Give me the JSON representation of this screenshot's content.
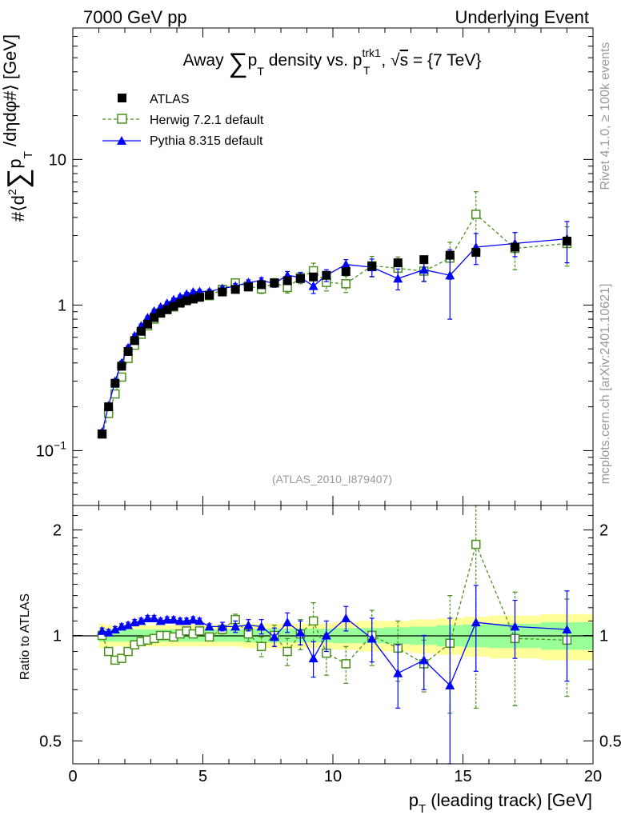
{
  "header": {
    "left": "7000 GeV pp",
    "right": "Underlying Event"
  },
  "side_labels": {
    "rivet": "Rivet 4.1.0, ≥ 100k events",
    "mcplots": "mcplots.cern.ch [arXiv:2401.10621]"
  },
  "chart_data": [
    {
      "type": "scatter",
      "panel": "main",
      "title_parts": {
        "pre": "Away ",
        "sum": "∑",
        "p": "p",
        "T": "T",
        "mid": " density vs. p",
        "sup": "trk1",
        "T2": "T",
        "post1": ", √",
        "s": "s",
        "post2": " = {7 TeV}"
      },
      "ylabel": "#⟨d² ∑ p_T /dηdφ#⟩ [GeV]",
      "ylabel_parts": {
        "a": "#⟨d",
        "two": "2",
        "sum": "∑",
        "p": "p",
        "T": "T",
        "b": " /dηdφ#⟩ [GeV]"
      },
      "yscale": "log",
      "ylim": [
        0.042,
        80
      ],
      "xlim": [
        0,
        20
      ],
      "yticks": [
        {
          "value": 0.1,
          "base": "10",
          "exp": "−1"
        },
        {
          "value": 1,
          "label": "1"
        },
        {
          "value": 10,
          "label": "10"
        }
      ],
      "watermark": "(ATLAS_2010_I879407)",
      "legend": [
        "ATLAS",
        "Herwig 7.2.1 default",
        "Pythia 8.315 default"
      ],
      "x": [
        1.125,
        1.375,
        1.625,
        1.875,
        2.125,
        2.375,
        2.625,
        2.875,
        3.125,
        3.375,
        3.625,
        3.875,
        4.125,
        4.375,
        4.625,
        4.875,
        5.25,
        5.75,
        6.25,
        6.75,
        7.25,
        7.75,
        8.25,
        8.75,
        9.25,
        9.75,
        10.5,
        11.5,
        12.5,
        13.5,
        14.5,
        15.5,
        17.0,
        19.0
      ],
      "series": [
        {
          "name": "ATLAS",
          "color": "#000000",
          "marker": "square",
          "values": [
            0.13,
            0.2,
            0.29,
            0.38,
            0.48,
            0.57,
            0.66,
            0.74,
            0.82,
            0.88,
            0.93,
            0.98,
            1.03,
            1.07,
            1.1,
            1.13,
            1.17,
            1.23,
            1.28,
            1.33,
            1.38,
            1.42,
            1.47,
            1.52,
            1.56,
            1.6,
            1.7,
            1.85,
            1.95,
            2.05,
            2.2,
            2.3,
            2.5,
            2.75
          ],
          "errors": [
            0.005,
            0.008,
            0.01,
            0.012,
            0.015,
            0.017,
            0.02,
            0.02,
            0.022,
            0.024,
            0.025,
            0.027,
            0.03,
            0.03,
            0.032,
            0.033,
            0.035,
            0.04,
            0.04,
            0.045,
            0.05,
            0.05,
            0.055,
            0.06,
            0.065,
            0.07,
            0.08,
            0.1,
            0.12,
            0.14,
            0.18,
            0.2,
            0.25,
            0.3
          ]
        },
        {
          "name": "Herwig 7.2.1 default",
          "color": "#4a8f1e",
          "marker": "open-square",
          "line": "dashed",
          "values": [
            0.13,
            0.18,
            0.245,
            0.32,
            0.43,
            0.53,
            0.63,
            0.72,
            0.8,
            0.88,
            0.93,
            0.97,
            1.04,
            1.1,
            1.11,
            1.16,
            1.16,
            1.28,
            1.42,
            1.35,
            1.29,
            1.42,
            1.32,
            1.54,
            1.72,
            1.43,
            1.4,
            1.86,
            1.79,
            1.71,
            2.1,
            4.2,
            2.45,
            2.65
          ],
          "errors": [
            0.006,
            0.01,
            0.012,
            0.015,
            0.02,
            0.02,
            0.025,
            0.025,
            0.03,
            0.03,
            0.03,
            0.035,
            0.035,
            0.04,
            0.04,
            0.045,
            0.05,
            0.06,
            0.07,
            0.08,
            0.09,
            0.1,
            0.11,
            0.14,
            0.22,
            0.18,
            0.18,
            0.3,
            0.35,
            0.25,
            0.6,
            1.8,
            0.7,
            0.8
          ]
        },
        {
          "name": "Pythia 8.315 default",
          "color": "#0000ff",
          "marker": "triangle",
          "line": "solid",
          "values": [
            0.134,
            0.204,
            0.3,
            0.4,
            0.51,
            0.615,
            0.72,
            0.82,
            0.91,
            0.97,
            1.03,
            1.09,
            1.14,
            1.19,
            1.23,
            1.24,
            1.24,
            1.3,
            1.35,
            1.43,
            1.47,
            1.41,
            1.6,
            1.55,
            1.35,
            1.6,
            1.9,
            1.82,
            1.52,
            1.75,
            1.6,
            2.5,
            2.65,
            2.85
          ],
          "errors": [
            0.005,
            0.008,
            0.01,
            0.012,
            0.015,
            0.017,
            0.02,
            0.02,
            0.022,
            0.024,
            0.025,
            0.027,
            0.03,
            0.03,
            0.035,
            0.035,
            0.04,
            0.045,
            0.05,
            0.06,
            0.07,
            0.08,
            0.1,
            0.12,
            0.15,
            0.15,
            0.15,
            0.25,
            0.25,
            0.3,
            0.8,
            0.6,
            0.5,
            0.9
          ]
        }
      ]
    },
    {
      "type": "scatter",
      "panel": "ratio",
      "ylabel": "Ratio to ATLAS",
      "yscale": "log",
      "ylim": [
        0.43,
        2.35
      ],
      "xlim": [
        0,
        20
      ],
      "xlabel": "p_T (leading track) [GeV]",
      "xlabel_parts": {
        "p": "p",
        "T": "T",
        "rest": " (leading track) [GeV]"
      },
      "xticks": [
        0,
        5,
        10,
        15,
        20
      ],
      "yticks": [
        0.5,
        1,
        2
      ],
      "band_colors": {
        "outer": "#ffff99",
        "inner": "#99ff99"
      },
      "band_edges": [
        1.0,
        1.25,
        1.5,
        1.75,
        2.0,
        2.25,
        2.5,
        2.75,
        3.0,
        3.25,
        3.5,
        3.75,
        4.0,
        4.25,
        4.5,
        4.75,
        5.0,
        5.5,
        6.0,
        6.5,
        7.0,
        7.5,
        8.0,
        8.5,
        9.0,
        9.5,
        10.0,
        11.0,
        12.0,
        13.0,
        14.0,
        15.0,
        16.0,
        18.0,
        20.0
      ],
      "band_outer": [
        0.08,
        0.07,
        0.07,
        0.07,
        0.07,
        0.07,
        0.07,
        0.07,
        0.07,
        0.07,
        0.07,
        0.07,
        0.07,
        0.07,
        0.07,
        0.07,
        0.07,
        0.07,
        0.07,
        0.08,
        0.08,
        0.08,
        0.08,
        0.08,
        0.08,
        0.08,
        0.09,
        0.1,
        0.1,
        0.11,
        0.12,
        0.13,
        0.14,
        0.15
      ],
      "band_inner": [
        0.04,
        0.04,
        0.04,
        0.04,
        0.04,
        0.04,
        0.04,
        0.04,
        0.04,
        0.04,
        0.04,
        0.04,
        0.04,
        0.04,
        0.04,
        0.04,
        0.04,
        0.04,
        0.04,
        0.045,
        0.045,
        0.045,
        0.045,
        0.045,
        0.045,
        0.045,
        0.05,
        0.05,
        0.055,
        0.06,
        0.07,
        0.075,
        0.08,
        0.09
      ],
      "x": [
        1.125,
        1.375,
        1.625,
        1.875,
        2.125,
        2.375,
        2.625,
        2.875,
        3.125,
        3.375,
        3.625,
        3.875,
        4.125,
        4.375,
        4.625,
        4.875,
        5.25,
        5.75,
        6.25,
        6.75,
        7.25,
        7.75,
        8.25,
        8.75,
        9.25,
        9.75,
        10.5,
        11.5,
        12.5,
        13.5,
        14.5,
        15.5,
        17.0,
        19.0
      ],
      "series": [
        {
          "name": "Herwig 7.2.1 default",
          "color": "#4a8f1e",
          "marker": "open-square",
          "line": "dashed",
          "values": [
            1.0,
            0.9,
            0.85,
            0.86,
            0.9,
            0.94,
            0.96,
            0.97,
            0.98,
            1.0,
            1.0,
            0.99,
            1.01,
            1.03,
            1.01,
            1.03,
            0.99,
            1.04,
            1.11,
            1.01,
            0.93,
            1.0,
            0.9,
            1.01,
            1.1,
            0.89,
            0.83,
            1.0,
            0.92,
            0.83,
            0.95,
            1.82,
            0.98,
            0.97
          ],
          "errors": [
            0.02,
            0.02,
            0.02,
            0.02,
            0.02,
            0.02,
            0.02,
            0.02,
            0.02,
            0.02,
            0.02,
            0.02,
            0.02,
            0.02,
            0.02,
            0.02,
            0.02,
            0.03,
            0.04,
            0.05,
            0.06,
            0.07,
            0.08,
            0.1,
            0.14,
            0.12,
            0.1,
            0.18,
            0.18,
            0.14,
            0.35,
            1.2,
            0.35,
            0.3
          ]
        },
        {
          "name": "Pythia 8.315 default",
          "color": "#0000ff",
          "marker": "triangle",
          "line": "solid",
          "values": [
            1.03,
            1.02,
            1.04,
            1.06,
            1.07,
            1.09,
            1.1,
            1.12,
            1.12,
            1.1,
            1.11,
            1.11,
            1.1,
            1.1,
            1.11,
            1.1,
            1.06,
            1.06,
            1.06,
            1.07,
            1.06,
            0.99,
            1.09,
            1.02,
            0.86,
            1.0,
            1.12,
            0.98,
            0.78,
            0.85,
            0.72,
            1.09,
            1.06,
            1.04
          ],
          "errors": [
            0.02,
            0.02,
            0.02,
            0.02,
            0.02,
            0.02,
            0.02,
            0.02,
            0.02,
            0.02,
            0.02,
            0.02,
            0.02,
            0.02,
            0.02,
            0.02,
            0.02,
            0.03,
            0.04,
            0.04,
            0.05,
            0.06,
            0.07,
            0.08,
            0.1,
            0.1,
            0.09,
            0.14,
            0.16,
            0.15,
            0.4,
            0.3,
            0.2,
            0.3
          ]
        }
      ]
    }
  ]
}
